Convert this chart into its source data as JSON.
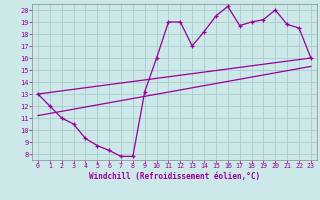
{
  "xlabel": "Windchill (Refroidissement éolien,°C)",
  "xlim": [
    -0.5,
    23.5
  ],
  "ylim": [
    7.5,
    20.5
  ],
  "xticks": [
    0,
    1,
    2,
    3,
    4,
    5,
    6,
    7,
    8,
    9,
    10,
    11,
    12,
    13,
    14,
    15,
    16,
    17,
    18,
    19,
    20,
    21,
    22,
    23
  ],
  "yticks": [
    8,
    9,
    10,
    11,
    12,
    13,
    14,
    15,
    16,
    17,
    18,
    19,
    20
  ],
  "bg_color": "#cce8e8",
  "line_color": "#990099",
  "grid_color": "#aacccc",
  "line1_x": [
    0,
    1,
    2,
    3,
    4,
    5,
    6,
    7,
    8,
    9,
    10,
    11,
    12,
    13,
    14,
    15,
    16,
    17,
    18,
    19,
    20,
    21,
    22,
    23
  ],
  "line1_y": [
    13,
    12,
    11,
    10.5,
    9.3,
    8.7,
    8.3,
    7.8,
    7.8,
    13.2,
    16.0,
    19.0,
    19.0,
    17.0,
    18.2,
    19.5,
    20.3,
    18.7,
    19.0,
    19.2,
    20.0,
    18.8,
    18.5,
    16.0
  ],
  "line2_x": [
    0,
    23
  ],
  "line2_y": [
    13.0,
    16.0
  ],
  "line3_x": [
    0,
    23
  ],
  "line3_y": [
    11.2,
    15.3
  ]
}
